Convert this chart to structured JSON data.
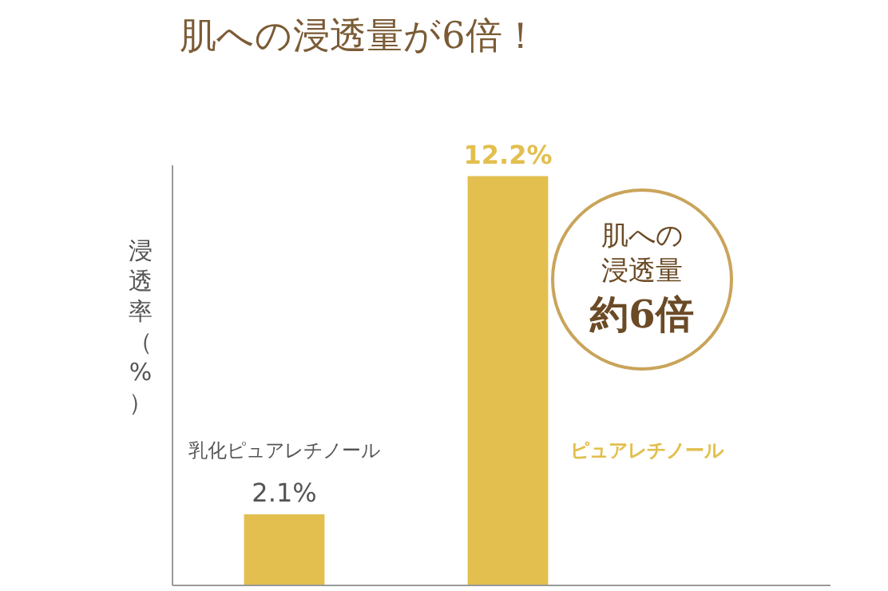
{
  "chart_data": {
    "type": "bar",
    "title": "肌への浸透量が6倍！",
    "ylabel": "浸透率（%）",
    "categories": [
      "乳化ピュアレチノール",
      "ピュアレチノール"
    ],
    "values": [
      2.1,
      12.2
    ],
    "value_labels": [
      "2.1%",
      "12.2%"
    ],
    "color": "#e2bf4e",
    "ylim": [
      0,
      12.5
    ],
    "tick_labels": false,
    "grid": false,
    "legend": false,
    "annotations": [
      "肌への",
      "浸透量",
      "約6倍"
    ]
  }
}
